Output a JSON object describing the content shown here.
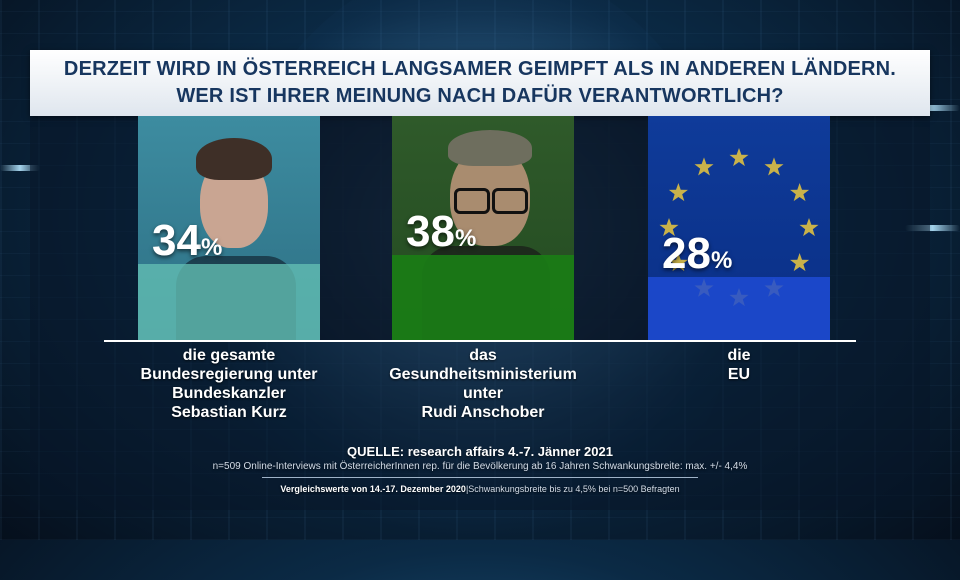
{
  "title": {
    "line1": "DERZEIT WIRD IN ÖSTERREICH LANGSAMER GEIMPFT ALS IN ANDEREN LÄNDERN.",
    "line2": "WER IST IHRER MEINUNG NACH DAFÜR VERANTWORTLICH?"
  },
  "chart_data": {
    "type": "bar",
    "title": "DERZEIT WIRD IN ÖSTERREICH LANGSAMER GEIMPFT ALS IN ANDEREN LÄNDERN. WER IST IHRER MEINUNG NACH DAFÜR VERANTWORTLICH?",
    "unit": "%",
    "categories": [
      "die gesamte Bundesregierung unter Bundeskanzler Sebastian Kurz",
      "das Gesundheitsministerium unter Rudi Anschober",
      "die EU"
    ],
    "values": [
      34,
      38,
      28
    ],
    "value_labels": [
      "34",
      "38",
      "28"
    ],
    "category_lines": [
      [
        "die gesamte",
        "Bundesregierung unter",
        "Bundeskanzler",
        "Sebastian Kurz"
      ],
      [
        "das",
        "Gesundheitsministerium",
        "unter",
        "Rudi Anschober"
      ],
      [
        "die",
        "EU"
      ]
    ],
    "bar_colors": [
      "#63bfb4",
      "#1a7d16",
      "#1f4bd4"
    ],
    "ylim": [
      0,
      100
    ],
    "grid": false,
    "legend": "none"
  },
  "source": {
    "line1": "QUELLE: research affairs 4.-7. Jänner 2021",
    "line2": "n=509 Online-Interviews mit ÖsterreicherInnen rep. für die Bevölkerung ab 16 Jahren  Schwankungsbreite: max. +/- 4,4%",
    "line3_bold": "Vergleichswerte von 14.-17. Dezember 2020",
    "line3_rest": "|Schwankungsbreite bis zu 4,5% bei n=500 Befragten"
  },
  "colors": {
    "title_text": "#17365f",
    "panel_bg": "#0b2a45"
  }
}
